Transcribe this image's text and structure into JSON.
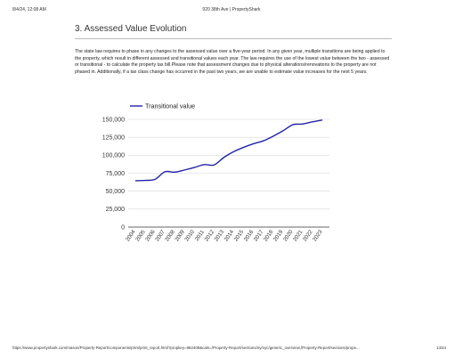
{
  "browser": {
    "datetime": "8/4/24, 12:08 AM",
    "page_title": "920 38th Ave | PropertyShark",
    "url": "https://www.propertyshark.com/mason/Property-Report/components/print/print_report.html?propkey=962409&cats=/Property-Report/sections/ny/nyc/generic_overview,/Property-Report/sections/prope...",
    "page_number": "14/44"
  },
  "section": {
    "title": "3. Assessed Value Evolution",
    "description": "The state law requires to phase in any changes to the assessed value over a five-year period. In any given year, multiple transitions are being applied to the property, which result in different assessed and transitional values each year. The law requires the use of the lowest value between the two - assessed or transitional - to calculate the property tax bill.Please note that assessment changes due to physical alterations/renovations to the property are not phased in. Additionally, if a tax class change has occurred in the past two years, we are unable to estimate value increases for the next 5 years."
  },
  "chart_data": {
    "type": "line",
    "title": "",
    "xlabel": "",
    "ylabel": "",
    "x": [
      "2004",
      "2005",
      "2006",
      "2007",
      "2008",
      "2009",
      "2010",
      "2011",
      "2012",
      "2013",
      "2014",
      "2015",
      "2016",
      "2017",
      "2018",
      "2019",
      "2020",
      "2021",
      "2022",
      "2023"
    ],
    "series": [
      {
        "name": "Transitional value",
        "color": "#2323a8",
        "values": [
          64500,
          65000,
          66500,
          77000,
          76500,
          79500,
          83000,
          87000,
          86500,
          97000,
          105000,
          111000,
          116000,
          120000,
          126500,
          134000,
          142500,
          143500,
          146500,
          149000
        ]
      }
    ],
    "ylim": [
      0,
      150000
    ],
    "yticks": [
      0,
      25000,
      50000,
      75000,
      100000,
      125000,
      150000
    ],
    "ytick_labels": [
      "0",
      "25,000",
      "50,000",
      "75,000",
      "100,000",
      "125,000",
      "150,000"
    ],
    "grid": true,
    "legend": "top-left"
  }
}
